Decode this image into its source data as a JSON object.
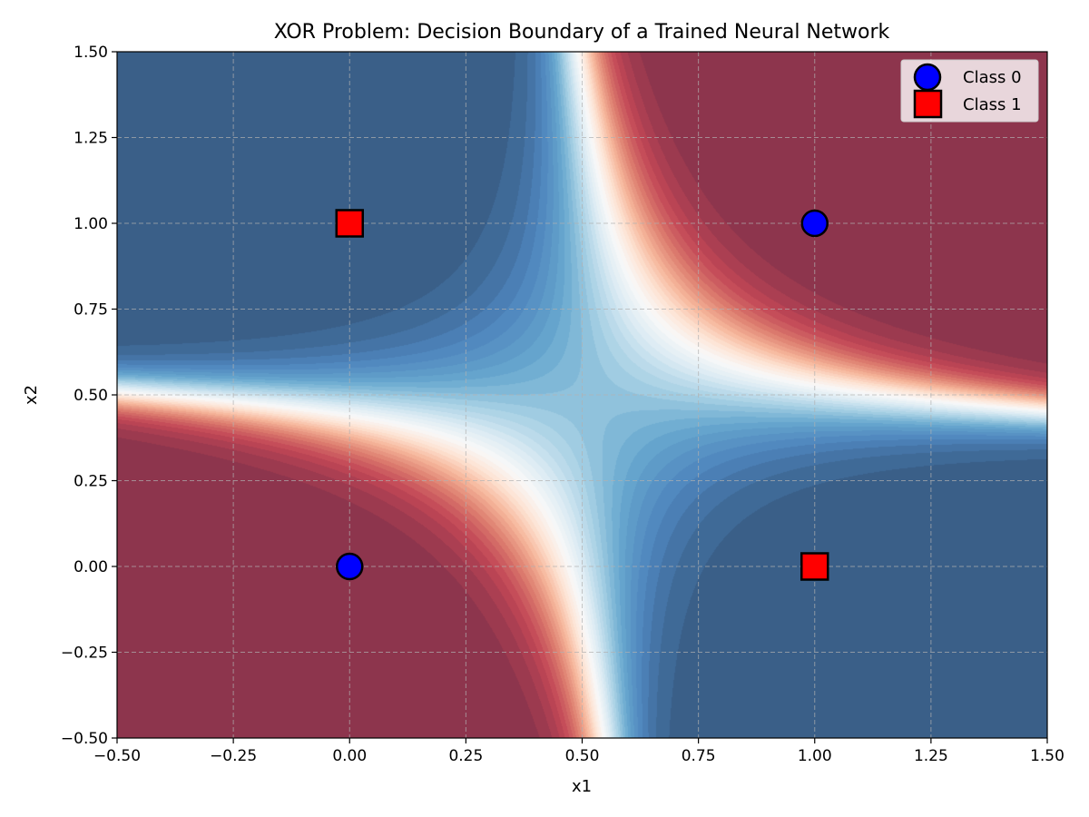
{
  "chart_data": {
    "type": "scatter",
    "title": "XOR Problem: Decision Boundary of a Trained Neural Network",
    "xlabel": "x1",
    "ylabel": "x2",
    "xlim": [
      -0.5,
      1.5
    ],
    "ylim": [
      -0.5,
      1.5
    ],
    "xticks": [
      -0.5,
      -0.25,
      0.0,
      0.25,
      0.5,
      0.75,
      1.0,
      1.25,
      1.5
    ],
    "yticks": [
      -0.5,
      -0.25,
      0.0,
      0.25,
      0.5,
      0.75,
      1.0,
      1.25,
      1.5
    ],
    "xtick_labels": [
      "−0.50",
      "−0.25",
      "0.00",
      "0.25",
      "0.50",
      "0.75",
      "1.00",
      "1.25",
      "1.50"
    ],
    "ytick_labels": [
      "−0.50",
      "−0.25",
      "0.00",
      "0.25",
      "0.50",
      "0.75",
      "1.00",
      "1.25",
      "1.50"
    ],
    "grid": true,
    "legend_position": "top-right",
    "background": {
      "kind": "filled-contour",
      "colormap": "RdBu",
      "description_values": "class-1 probability surface; red = high, blue = low, white = 0.5 boundary"
    },
    "series": [
      {
        "name": "Class 0",
        "marker": "circle",
        "color": "#0000ff",
        "points": [
          [
            0,
            0
          ],
          [
            1,
            1
          ]
        ]
      },
      {
        "name": "Class 1",
        "marker": "square",
        "color": "#ff0000",
        "points": [
          [
            0,
            1
          ],
          [
            1,
            0
          ]
        ]
      }
    ]
  }
}
